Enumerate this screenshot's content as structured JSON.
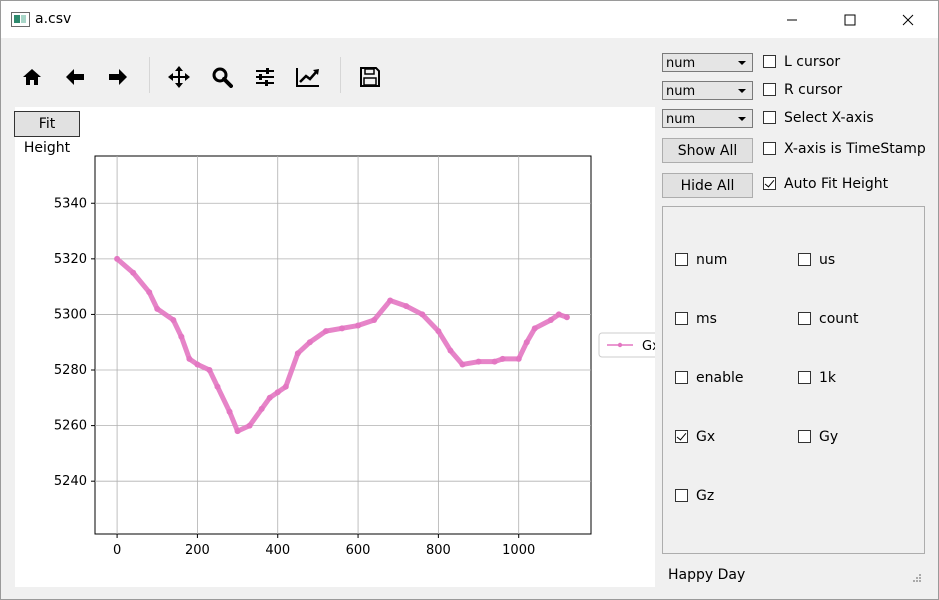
{
  "window": {
    "title": "a.csv"
  },
  "toolbar": {
    "icons": [
      "home-icon",
      "back-icon",
      "forward-icon",
      "pan-icon",
      "zoom-icon",
      "configure-subplots-icon",
      "edit-axis-icon",
      "save-icon"
    ]
  },
  "plot": {
    "fit_height_label": "Fit Height",
    "legend_label": "Gx"
  },
  "controls": {
    "combo1": "num",
    "combo2": "num",
    "combo3": "num",
    "l_cursor": "L cursor",
    "r_cursor": "R cursor",
    "select_x": "Select X-axis",
    "x_timestamp": "X-axis is TimeStamp",
    "auto_fit": "Auto Fit Height",
    "auto_fit_checked": true,
    "show_all": "Show All",
    "hide_all": "Hide All"
  },
  "channels": [
    {
      "label": "num",
      "checked": false
    },
    {
      "label": "us",
      "checked": false
    },
    {
      "label": "ms",
      "checked": false
    },
    {
      "label": "count",
      "checked": false
    },
    {
      "label": "enable",
      "checked": false
    },
    {
      "label": "1k",
      "checked": false
    },
    {
      "label": "Gx",
      "checked": true
    },
    {
      "label": "Gy",
      "checked": false
    },
    {
      "label": "Gz",
      "checked": false
    }
  ],
  "status": "Happy Day",
  "chart_data": {
    "type": "line",
    "xlim": [
      -55,
      1180
    ],
    "ylim": [
      5221,
      5357
    ],
    "xticks": [
      0,
      200,
      400,
      600,
      800,
      1000
    ],
    "yticks": [
      5240,
      5260,
      5280,
      5300,
      5320,
      5340
    ],
    "grid": true,
    "legend_position": "right",
    "series": [
      {
        "name": "Gx",
        "color": "#e377c2",
        "points": [
          [
            0,
            5320
          ],
          [
            40,
            5315
          ],
          [
            80,
            5308
          ],
          [
            100,
            5302
          ],
          [
            140,
            5298
          ],
          [
            160,
            5292
          ],
          [
            180,
            5284
          ],
          [
            200,
            5282
          ],
          [
            230,
            5280
          ],
          [
            250,
            5274
          ],
          [
            280,
            5265
          ],
          [
            300,
            5258
          ],
          [
            330,
            5260
          ],
          [
            360,
            5266
          ],
          [
            380,
            5270
          ],
          [
            400,
            5272
          ],
          [
            420,
            5274
          ],
          [
            450,
            5286
          ],
          [
            480,
            5290
          ],
          [
            520,
            5294
          ],
          [
            560,
            5295
          ],
          [
            600,
            5296
          ],
          [
            640,
            5298
          ],
          [
            680,
            5305
          ],
          [
            720,
            5303
          ],
          [
            760,
            5300
          ],
          [
            800,
            5294
          ],
          [
            830,
            5287
          ],
          [
            860,
            5282
          ],
          [
            900,
            5283
          ],
          [
            940,
            5283
          ],
          [
            960,
            5284
          ],
          [
            1000,
            5284
          ],
          [
            1020,
            5290
          ],
          [
            1040,
            5295
          ],
          [
            1080,
            5298
          ],
          [
            1100,
            5300
          ],
          [
            1120,
            5299
          ]
        ]
      }
    ]
  }
}
